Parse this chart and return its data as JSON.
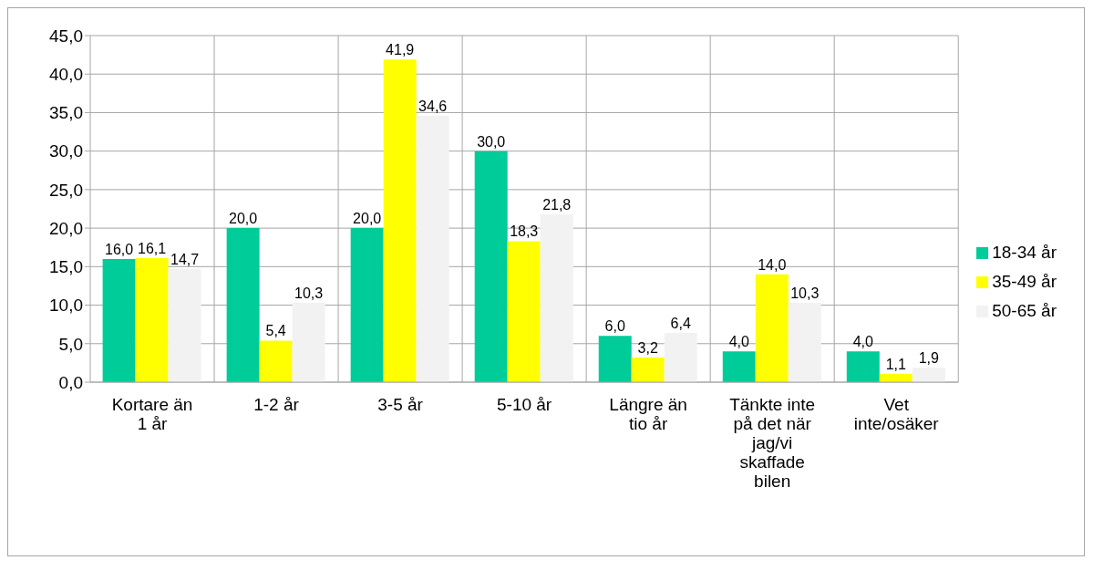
{
  "chart_data": {
    "type": "bar",
    "categories": [
      "Kortare än 1 år",
      "1-2 år",
      "3-5 år",
      "5-10 år",
      "Längre än tio år",
      "Tänkte inte på det när jag/vi skaffade bilen",
      "Vet inte/osäker"
    ],
    "series": [
      {
        "name": "18-34 år",
        "color": "#00cc99",
        "values": [
          16.0,
          20.0,
          20.0,
          30.0,
          6.0,
          4.0,
          4.0
        ],
        "value_labels": [
          "16,0",
          "20,0",
          "20,0",
          "30,0",
          "6,0",
          "4,0",
          "4,0"
        ]
      },
      {
        "name": "35-49 år",
        "color": "#ffff00",
        "values": [
          16.1,
          5.4,
          41.9,
          18.3,
          3.2,
          14.0,
          1.1
        ],
        "value_labels": [
          "16,1",
          "5,4",
          "41,9",
          "18,3",
          "3,2",
          "14,0",
          "1,1"
        ]
      },
      {
        "name": "50-65 år",
        "color": "#f2f2f2",
        "values": [
          14.7,
          10.3,
          34.6,
          21.8,
          6.4,
          10.3,
          1.9
        ],
        "value_labels": [
          "14,7",
          "10,3",
          "34,6",
          "21,8",
          "6,4",
          "10,3",
          "1,9"
        ]
      }
    ],
    "ylim": [
      0,
      45
    ],
    "yticks": [
      {
        "value": 0,
        "label": "0,0"
      },
      {
        "value": 5,
        "label": "5,0"
      },
      {
        "value": 10,
        "label": "10,0"
      },
      {
        "value": 15,
        "label": "15,0"
      },
      {
        "value": 20,
        "label": "20,0"
      },
      {
        "value": 25,
        "label": "25,0"
      },
      {
        "value": 30,
        "label": "30,0"
      },
      {
        "value": 35,
        "label": "35,0"
      },
      {
        "value": 40,
        "label": "40,0"
      },
      {
        "value": 45,
        "label": "45,0"
      }
    ],
    "grid": true,
    "legend": "right"
  }
}
